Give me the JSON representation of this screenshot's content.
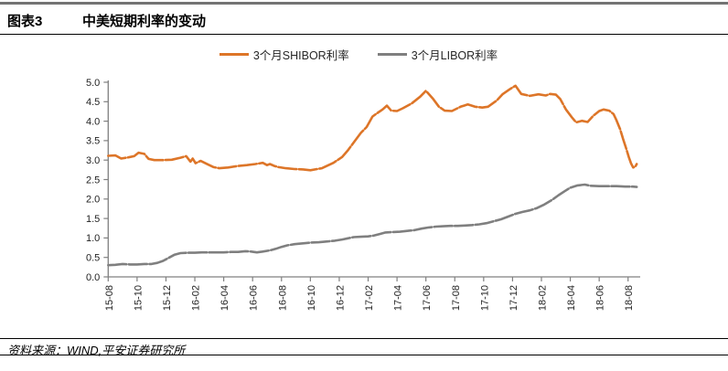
{
  "header": {
    "tag": "图表3",
    "title": "中美短期利率的变动"
  },
  "footer": {
    "source": "资料来源：WIND,平安证券研究所"
  },
  "colors": {
    "shibor_orange": "#DD7528",
    "libor_gray": "#7F7F7F",
    "axis": "#808080",
    "tick_text": "#1f1f1f",
    "rule_black": "#000000",
    "top_rule_gray": "#737373"
  },
  "chart_data": {
    "type": "line",
    "title": "中美短期利率的变动",
    "xlabel": "",
    "ylabel": "",
    "ylim": [
      0.0,
      5.0
    ],
    "ytick_step": 0.5,
    "grid": false,
    "legend_position": "top",
    "x_unit": "months since 2015-08",
    "xticks": [
      {
        "m": 0,
        "label": "15-08"
      },
      {
        "m": 2,
        "label": "15-10"
      },
      {
        "m": 4,
        "label": "15-12"
      },
      {
        "m": 6,
        "label": "16-02"
      },
      {
        "m": 8,
        "label": "16-04"
      },
      {
        "m": 10,
        "label": "16-06"
      },
      {
        "m": 12,
        "label": "16-08"
      },
      {
        "m": 14,
        "label": "16-10"
      },
      {
        "m": 16,
        "label": "16-12"
      },
      {
        "m": 18,
        "label": "17-02"
      },
      {
        "m": 20,
        "label": "17-04"
      },
      {
        "m": 22,
        "label": "17-06"
      },
      {
        "m": 24,
        "label": "17-08"
      },
      {
        "m": 26,
        "label": "17-10"
      },
      {
        "m": 28,
        "label": "17-12"
      },
      {
        "m": 30,
        "label": "18-02"
      },
      {
        "m": 32,
        "label": "18-04"
      },
      {
        "m": 34,
        "label": "18-06"
      },
      {
        "m": 36,
        "label": "18-08"
      }
    ],
    "series": [
      {
        "name": "3个月SHIBOR利率",
        "color": "#DD7528",
        "points": [
          [
            0,
            3.11
          ],
          [
            0.5,
            3.12
          ],
          [
            0.9,
            3.04
          ],
          [
            1.4,
            3.07
          ],
          [
            1.8,
            3.1
          ],
          [
            2.1,
            3.19
          ],
          [
            2.5,
            3.16
          ],
          [
            2.8,
            3.03
          ],
          [
            3.2,
            3.0
          ],
          [
            3.8,
            3.0
          ],
          [
            4.4,
            3.01
          ],
          [
            5.0,
            3.06
          ],
          [
            5.4,
            3.1
          ],
          [
            5.7,
            2.96
          ],
          [
            5.85,
            3.04
          ],
          [
            6.05,
            2.92
          ],
          [
            6.4,
            2.98
          ],
          [
            6.9,
            2.89
          ],
          [
            7.3,
            2.82
          ],
          [
            7.7,
            2.79
          ],
          [
            8.3,
            2.81
          ],
          [
            9.0,
            2.85
          ],
          [
            9.6,
            2.87
          ],
          [
            10.2,
            2.9
          ],
          [
            10.7,
            2.93
          ],
          [
            11.0,
            2.87
          ],
          [
            11.2,
            2.9
          ],
          [
            11.5,
            2.85
          ],
          [
            11.8,
            2.82
          ],
          [
            12.3,
            2.79
          ],
          [
            12.9,
            2.77
          ],
          [
            13.5,
            2.76
          ],
          [
            14.0,
            2.74
          ],
          [
            14.8,
            2.79
          ],
          [
            15.6,
            2.93
          ],
          [
            16.2,
            3.08
          ],
          [
            16.6,
            3.25
          ],
          [
            17.0,
            3.45
          ],
          [
            17.5,
            3.7
          ],
          [
            17.9,
            3.85
          ],
          [
            18.3,
            4.12
          ],
          [
            18.6,
            4.2
          ],
          [
            19.0,
            4.3
          ],
          [
            19.3,
            4.4
          ],
          [
            19.6,
            4.27
          ],
          [
            20.0,
            4.26
          ],
          [
            20.4,
            4.33
          ],
          [
            21.0,
            4.45
          ],
          [
            21.6,
            4.63
          ],
          [
            22.0,
            4.78
          ],
          [
            22.5,
            4.57
          ],
          [
            22.9,
            4.37
          ],
          [
            23.3,
            4.27
          ],
          [
            23.8,
            4.26
          ],
          [
            24.4,
            4.37
          ],
          [
            24.9,
            4.43
          ],
          [
            25.4,
            4.37
          ],
          [
            25.9,
            4.35
          ],
          [
            26.3,
            4.37
          ],
          [
            26.9,
            4.53
          ],
          [
            27.3,
            4.69
          ],
          [
            27.8,
            4.82
          ],
          [
            28.2,
            4.91
          ],
          [
            28.6,
            4.7
          ],
          [
            29.2,
            4.65
          ],
          [
            29.8,
            4.69
          ],
          [
            30.3,
            4.66
          ],
          [
            30.6,
            4.7
          ],
          [
            31.0,
            4.68
          ],
          [
            31.3,
            4.57
          ],
          [
            31.7,
            4.3
          ],
          [
            32.1,
            4.1
          ],
          [
            32.4,
            3.97
          ],
          [
            32.8,
            4.01
          ],
          [
            33.2,
            3.98
          ],
          [
            33.6,
            4.14
          ],
          [
            34.0,
            4.26
          ],
          [
            34.3,
            4.3
          ],
          [
            34.7,
            4.27
          ],
          [
            35.0,
            4.18
          ],
          [
            35.2,
            4.02
          ],
          [
            35.45,
            3.79
          ],
          [
            35.65,
            3.55
          ],
          [
            35.85,
            3.32
          ],
          [
            36.05,
            3.08
          ],
          [
            36.2,
            2.92
          ],
          [
            36.35,
            2.81
          ],
          [
            36.5,
            2.83
          ],
          [
            36.6,
            2.9
          ]
        ]
      },
      {
        "name": "3个月LIBOR利率",
        "color": "#7F7F7F",
        "points": [
          [
            0,
            0.3
          ],
          [
            0.5,
            0.31
          ],
          [
            1.0,
            0.33
          ],
          [
            1.5,
            0.32
          ],
          [
            2.0,
            0.32
          ],
          [
            2.5,
            0.33
          ],
          [
            3.0,
            0.33
          ],
          [
            3.4,
            0.36
          ],
          [
            3.8,
            0.41
          ],
          [
            4.2,
            0.49
          ],
          [
            4.6,
            0.57
          ],
          [
            5.0,
            0.61
          ],
          [
            5.5,
            0.62
          ],
          [
            6.0,
            0.62
          ],
          [
            6.5,
            0.63
          ],
          [
            7.0,
            0.63
          ],
          [
            7.5,
            0.63
          ],
          [
            8.0,
            0.63
          ],
          [
            8.5,
            0.64
          ],
          [
            9.0,
            0.64
          ],
          [
            9.5,
            0.66
          ],
          [
            9.9,
            0.65
          ],
          [
            10.3,
            0.63
          ],
          [
            10.7,
            0.65
          ],
          [
            11.2,
            0.68
          ],
          [
            11.6,
            0.72
          ],
          [
            12.0,
            0.77
          ],
          [
            12.4,
            0.81
          ],
          [
            12.9,
            0.84
          ],
          [
            13.4,
            0.86
          ],
          [
            14.0,
            0.88
          ],
          [
            14.6,
            0.89
          ],
          [
            15.2,
            0.91
          ],
          [
            15.7,
            0.93
          ],
          [
            16.2,
            0.96
          ],
          [
            16.6,
            0.99
          ],
          [
            17.0,
            1.02
          ],
          [
            17.5,
            1.03
          ],
          [
            18.0,
            1.04
          ],
          [
            18.4,
            1.06
          ],
          [
            18.8,
            1.1
          ],
          [
            19.2,
            1.14
          ],
          [
            19.7,
            1.15
          ],
          [
            20.2,
            1.16
          ],
          [
            20.7,
            1.18
          ],
          [
            21.2,
            1.2
          ],
          [
            21.7,
            1.24
          ],
          [
            22.2,
            1.27
          ],
          [
            22.7,
            1.29
          ],
          [
            23.2,
            1.3
          ],
          [
            23.7,
            1.31
          ],
          [
            24.2,
            1.31
          ],
          [
            24.7,
            1.32
          ],
          [
            25.2,
            1.33
          ],
          [
            25.7,
            1.35
          ],
          [
            26.2,
            1.38
          ],
          [
            26.7,
            1.43
          ],
          [
            27.2,
            1.48
          ],
          [
            27.7,
            1.55
          ],
          [
            28.2,
            1.62
          ],
          [
            28.7,
            1.67
          ],
          [
            29.2,
            1.71
          ],
          [
            29.7,
            1.77
          ],
          [
            30.2,
            1.86
          ],
          [
            30.7,
            1.97
          ],
          [
            31.2,
            2.1
          ],
          [
            31.6,
            2.2
          ],
          [
            32.0,
            2.29
          ],
          [
            32.5,
            2.35
          ],
          [
            33.0,
            2.37
          ],
          [
            33.4,
            2.34
          ],
          [
            34.0,
            2.33
          ],
          [
            34.6,
            2.33
          ],
          [
            35.2,
            2.33
          ],
          [
            35.8,
            2.32
          ],
          [
            36.3,
            2.32
          ],
          [
            36.6,
            2.31
          ]
        ]
      }
    ]
  }
}
